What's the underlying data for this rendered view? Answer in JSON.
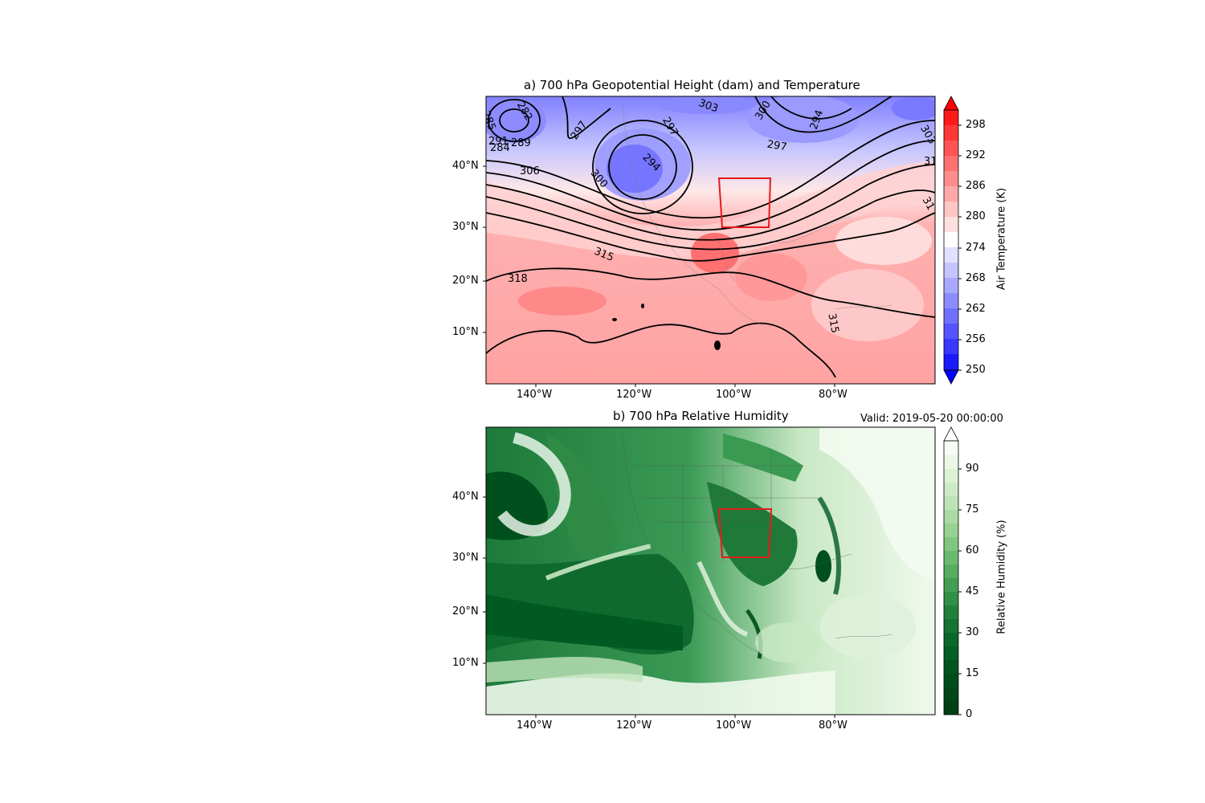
{
  "panels": [
    {
      "title": "a) 700 hPa Geopotential Height (dam) and Temperature",
      "xticks": [
        "140°W",
        "120°W",
        "100°W",
        "80°W"
      ],
      "yticks": [
        "40°N",
        "30°N",
        "20°N",
        "10°N"
      ],
      "colorbar": {
        "label": "Air Temperature (K)",
        "ticks": [
          "298",
          "292",
          "286",
          "280",
          "274",
          "268",
          "262",
          "256",
          "250"
        ],
        "colormap": "bwr",
        "extend": "both"
      },
      "contour_labels": [
        "285",
        "282",
        "297",
        "303",
        "300",
        "294",
        "303",
        "294",
        "297",
        "291",
        "289",
        "284",
        "306",
        "300",
        "294",
        "315",
        "318",
        "315",
        "31",
        "31"
      ],
      "box_color": "#e41a1c"
    },
    {
      "title": "b) 700 hPa Relative Humidity",
      "valid": "Valid: 2019-05-20 00:00:00",
      "xticks": [
        "140°W",
        "120°W",
        "100°W",
        "80°W"
      ],
      "yticks": [
        "40°N",
        "30°N",
        "20°N",
        "10°N"
      ],
      "colorbar": {
        "label": "Relative Humidity (%)",
        "ticks": [
          "90",
          "75",
          "60",
          "45",
          "30",
          "15",
          "0"
        ],
        "colormap": "Greens_r",
        "extend": "max"
      },
      "box_color": "#e41a1c"
    }
  ]
}
